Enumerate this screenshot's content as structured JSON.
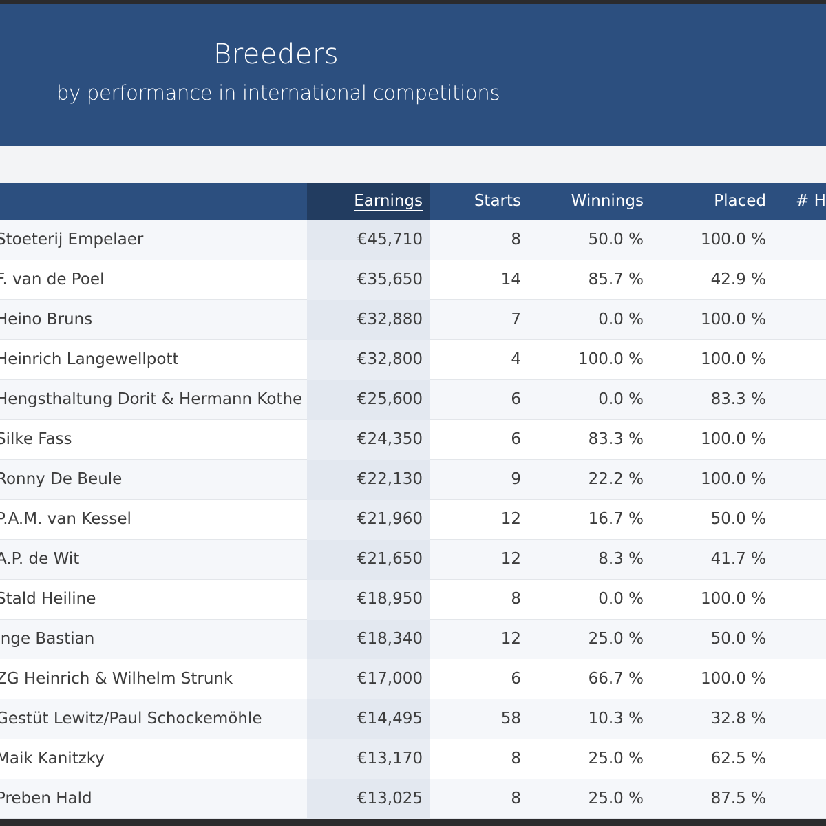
{
  "header": {
    "title": "Breeders",
    "subtitle": "by performance in international competitions"
  },
  "table": {
    "columns": {
      "earnings": "Earnings",
      "starts": "Starts",
      "winnings": "Winnings",
      "placed": "Placed",
      "horses": "# H"
    },
    "sorted_by": "Earnings",
    "rows": [
      {
        "name": "Stoeterij Empelaer",
        "earnings": "€45,710",
        "starts": "8",
        "winnings": "50.0 %",
        "placed": "100.0 %"
      },
      {
        "name": "F. van de Poel",
        "earnings": "€35,650",
        "starts": "14",
        "winnings": "85.7 %",
        "placed": "42.9 %"
      },
      {
        "name": "Heino Bruns",
        "earnings": "€32,880",
        "starts": "7",
        "winnings": "0.0 %",
        "placed": "100.0 %"
      },
      {
        "name": "Heinrich Langewellpott",
        "earnings": "€32,800",
        "starts": "4",
        "winnings": "100.0 %",
        "placed": "100.0 %"
      },
      {
        "name": "Hengsthaltung Dorit & Hermann Kothe",
        "earnings": "€25,600",
        "starts": "6",
        "winnings": "0.0 %",
        "placed": "83.3 %"
      },
      {
        "name": "Silke Fass",
        "earnings": "€24,350",
        "starts": "6",
        "winnings": "83.3 %",
        "placed": "100.0 %"
      },
      {
        "name": "Ronny De Beule",
        "earnings": "€22,130",
        "starts": "9",
        "winnings": "22.2 %",
        "placed": "100.0 %"
      },
      {
        "name": "P.A.M. van Kessel",
        "earnings": "€21,960",
        "starts": "12",
        "winnings": "16.7 %",
        "placed": "50.0 %"
      },
      {
        "name": "A.P. de Wit",
        "earnings": "€21,650",
        "starts": "12",
        "winnings": "8.3 %",
        "placed": "41.7 %"
      },
      {
        "name": "Stald Heiline",
        "earnings": "€18,950",
        "starts": "8",
        "winnings": "0.0 %",
        "placed": "100.0 %"
      },
      {
        "name": "Inge Bastian",
        "earnings": "€18,340",
        "starts": "12",
        "winnings": "25.0 %",
        "placed": "50.0 %"
      },
      {
        "name": "ZG Heinrich & Wilhelm Strunk",
        "earnings": "€17,000",
        "starts": "6",
        "winnings": "66.7 %",
        "placed": "100.0 %"
      },
      {
        "name": "Gestüt Lewitz/Paul Schockemöhle",
        "earnings": "€14,495",
        "starts": "58",
        "winnings": "10.3 %",
        "placed": "32.8 %"
      },
      {
        "name": "Maik Kanitzky",
        "earnings": "€13,170",
        "starts": "8",
        "winnings": "25.0 %",
        "placed": "62.5 %"
      },
      {
        "name": "Preben Hald",
        "earnings": "€13,025",
        "starts": "8",
        "winnings": "25.0 %",
        "placed": "87.5 %"
      }
    ]
  }
}
